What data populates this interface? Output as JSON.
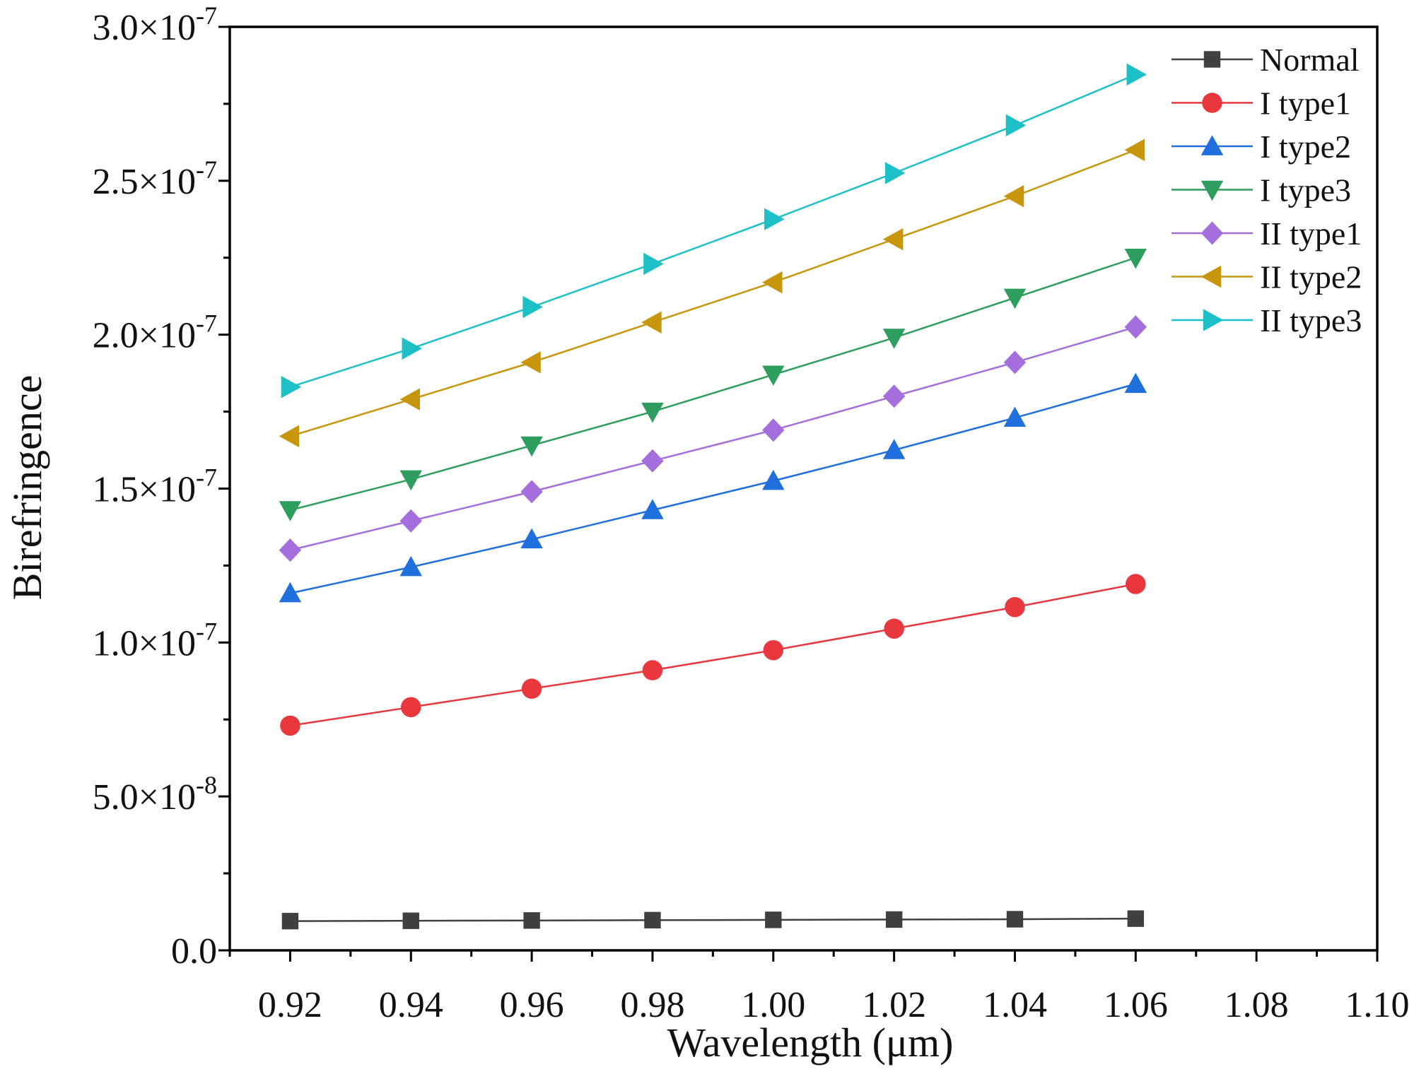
{
  "chart_data": {
    "type": "line",
    "xlabel": "Wavelength (μm)",
    "ylabel": "Birefringence",
    "xlim": [
      0.91,
      1.1
    ],
    "ylim": [
      0,
      3e-07
    ],
    "x": [
      0.92,
      0.94,
      0.96,
      0.98,
      1.0,
      1.02,
      1.04,
      1.06
    ],
    "x_ticks": [
      "0.92",
      "0.94",
      "0.96",
      "0.98",
      "1.00",
      "1.02",
      "1.04",
      "1.06",
      "1.08",
      "1.10"
    ],
    "y_ticks": [
      {
        "mantissa": "0.0",
        "exp": ""
      },
      {
        "mantissa": "5.0×10",
        "exp": "-8"
      },
      {
        "mantissa": "1.0×10",
        "exp": "-7"
      },
      {
        "mantissa": "1.5×10",
        "exp": "-7"
      },
      {
        "mantissa": "2.0×10",
        "exp": "-7"
      },
      {
        "mantissa": "2.5×10",
        "exp": "-7"
      },
      {
        "mantissa": "3.0×10",
        "exp": "-7"
      }
    ],
    "legend_position": "top-right",
    "grid": false,
    "series": [
      {
        "name": "Normal",
        "color": "#404040",
        "marker": "square",
        "values": [
          9.5e-09,
          9.6e-09,
          9.7e-09,
          9.8e-09,
          9.9e-09,
          1e-08,
          1.01e-08,
          1.03e-08
        ]
      },
      {
        "name": "I type1",
        "color": "#e8383d",
        "marker": "circle",
        "values": [
          7.3e-08,
          7.9e-08,
          8.5e-08,
          9.1e-08,
          9.75e-08,
          1.045e-07,
          1.115e-07,
          1.19e-07
        ]
      },
      {
        "name": "I type2",
        "color": "#1f6fdc",
        "marker": "triangle-up",
        "values": [
          1.16e-07,
          1.245e-07,
          1.335e-07,
          1.43e-07,
          1.525e-07,
          1.625e-07,
          1.73e-07,
          1.84e-07
        ]
      },
      {
        "name": "I type3",
        "color": "#2e9e5e",
        "marker": "triangle-down",
        "values": [
          1.43e-07,
          1.53e-07,
          1.64e-07,
          1.75e-07,
          1.87e-07,
          1.99e-07,
          2.12e-07,
          2.25e-07
        ]
      },
      {
        "name": "II type1",
        "color": "#a46fdc",
        "marker": "diamond",
        "values": [
          1.3e-07,
          1.395e-07,
          1.49e-07,
          1.59e-07,
          1.69e-07,
          1.8e-07,
          1.91e-07,
          2.025e-07
        ]
      },
      {
        "name": "II type2",
        "color": "#c8960c",
        "marker": "triangle-left",
        "values": [
          1.67e-07,
          1.79e-07,
          1.91e-07,
          2.04e-07,
          2.17e-07,
          2.31e-07,
          2.45e-07,
          2.6e-07
        ]
      },
      {
        "name": "II type3",
        "color": "#1ec0c8",
        "marker": "triangle-right",
        "values": [
          1.83e-07,
          1.955e-07,
          2.09e-07,
          2.23e-07,
          2.375e-07,
          2.525e-07,
          2.68e-07,
          2.845e-07
        ]
      }
    ]
  }
}
